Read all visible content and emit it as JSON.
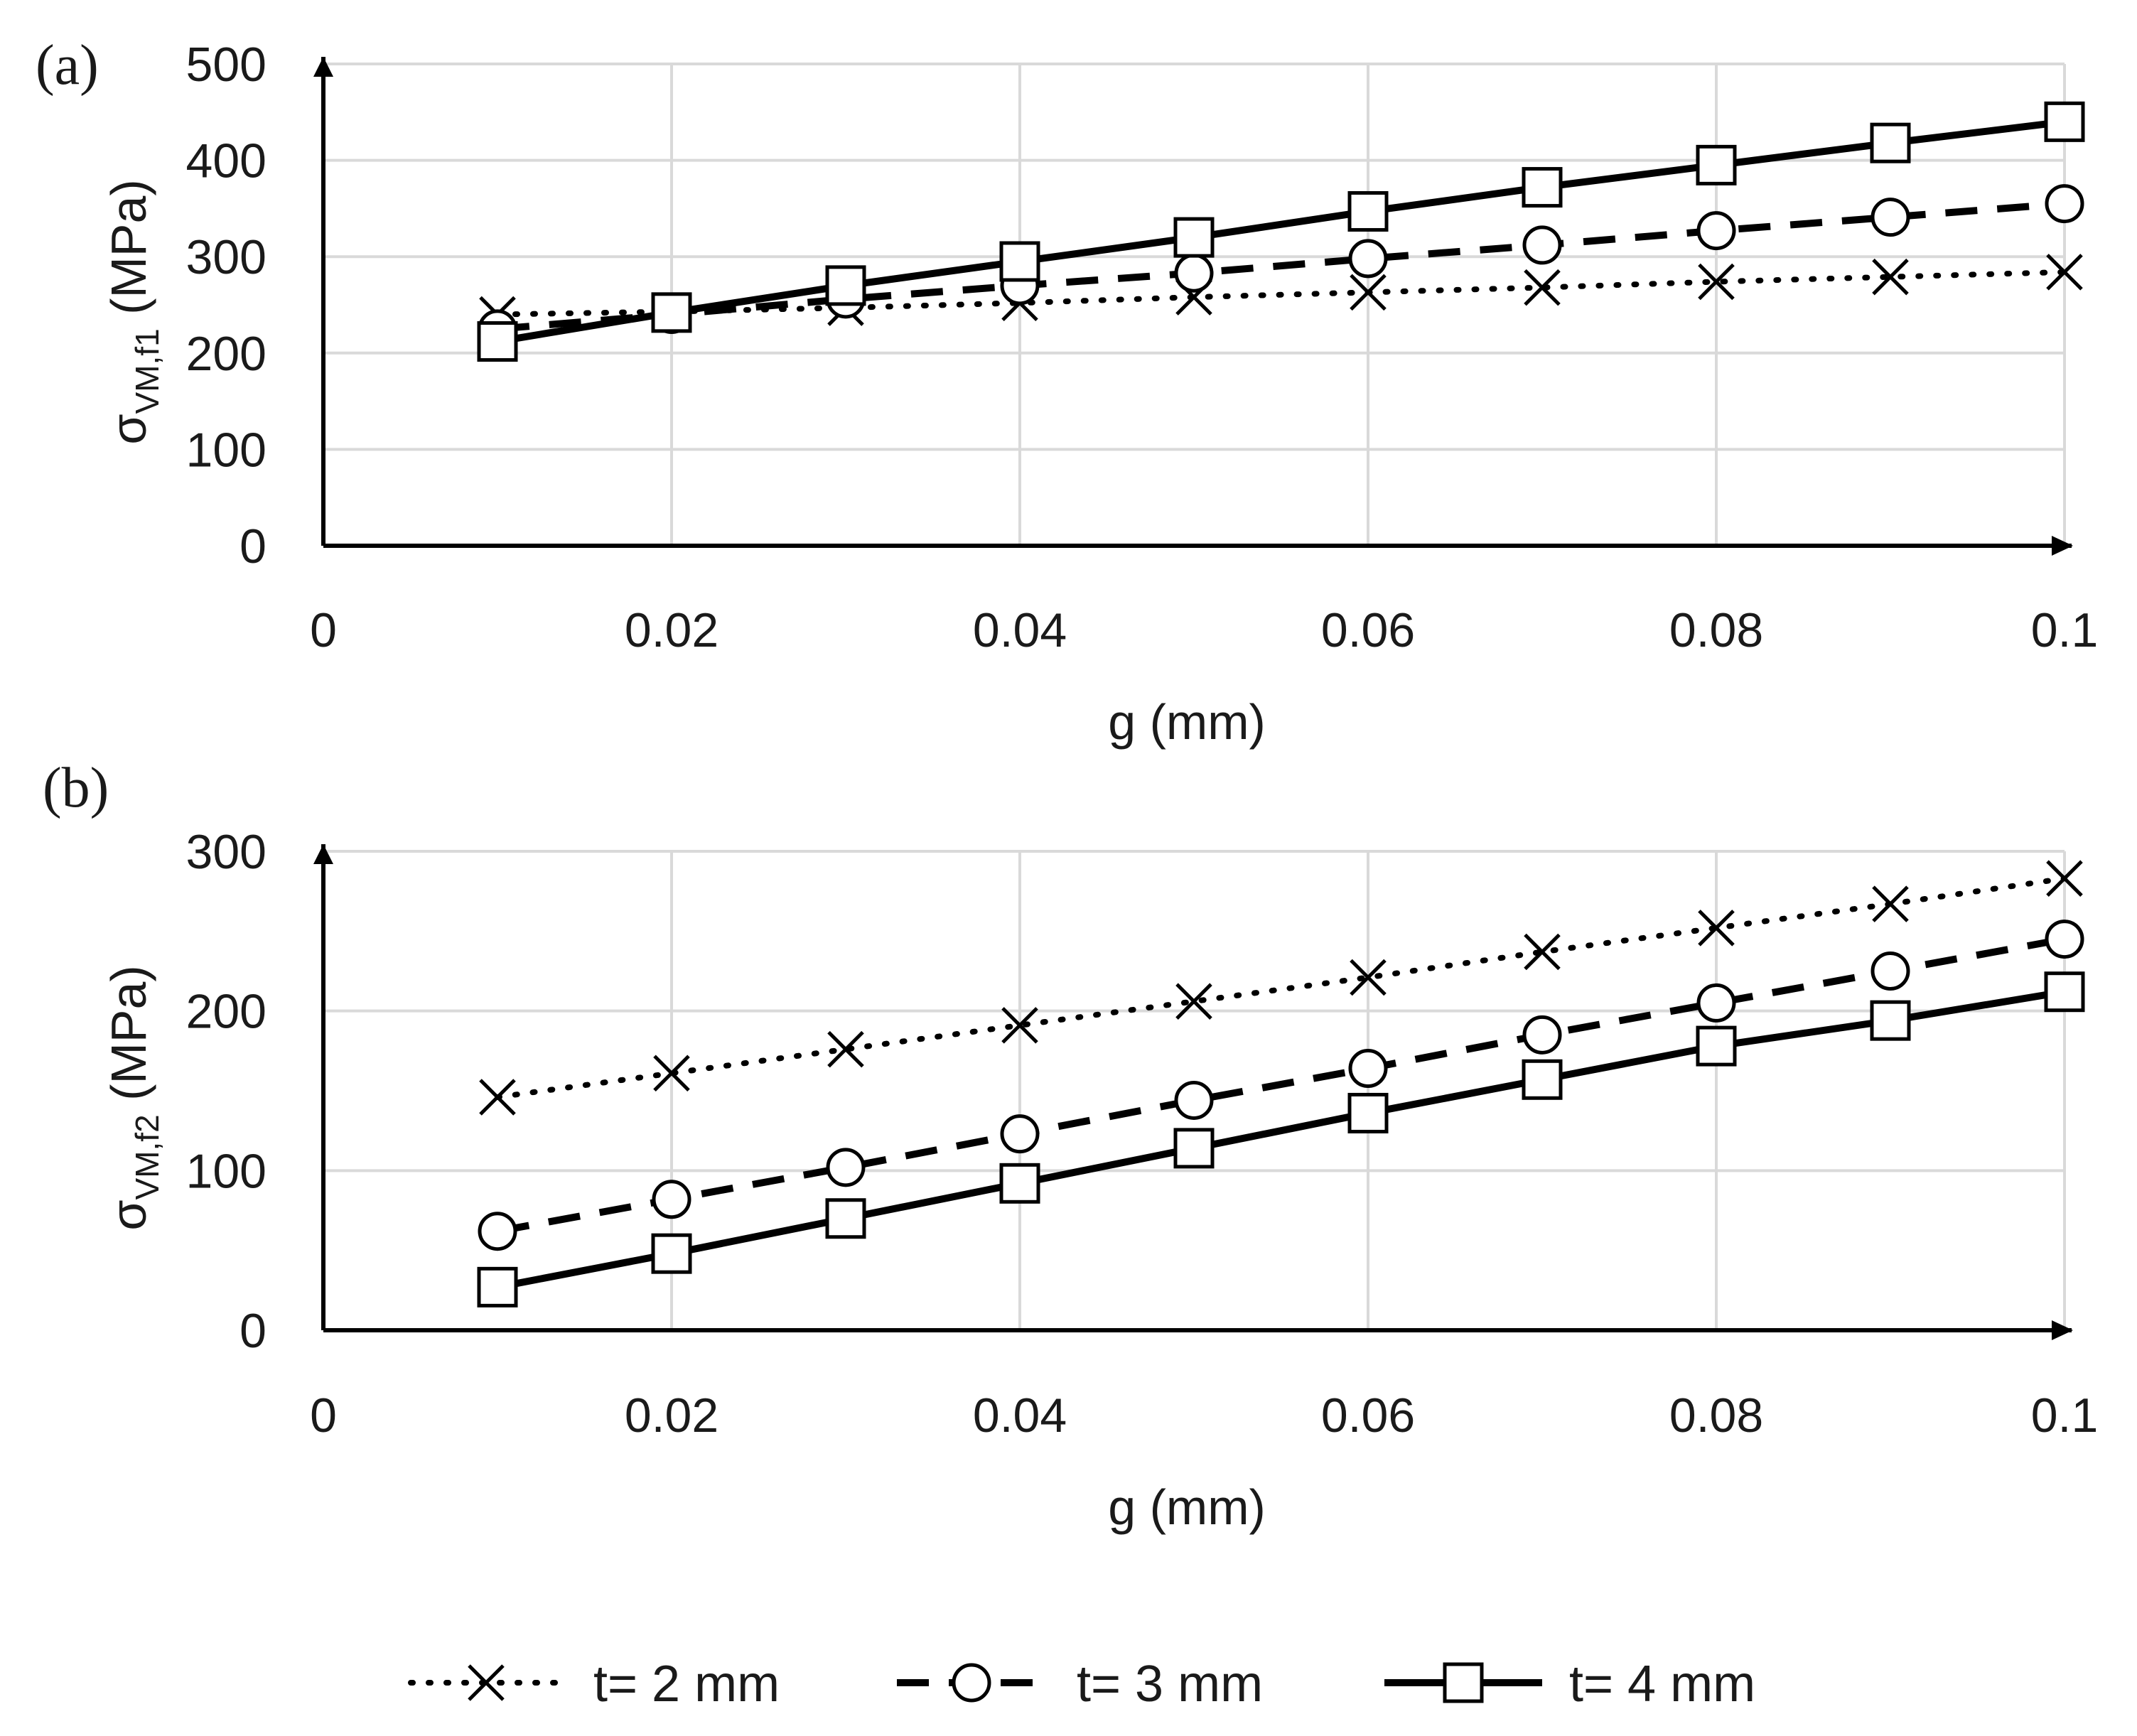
{
  "legend": [
    {
      "label": "t= 2 mm",
      "marker": "x",
      "dash": "dotted"
    },
    {
      "label": "t= 3 mm",
      "marker": "circle",
      "dash": "dashed"
    },
    {
      "label": "t= 4 mm",
      "marker": "square",
      "dash": "solid"
    }
  ],
  "chart_data": [
    {
      "type": "line",
      "panel_label": "(a)",
      "xlabel": "g (mm)",
      "ylabel": {
        "main": "σ",
        "sub": "VM,f1",
        "unit": " (MPa)"
      },
      "xlim": [
        0,
        0.1
      ],
      "ylim": [
        0,
        500
      ],
      "xticks": [
        0,
        0.02,
        0.04,
        0.06,
        0.08,
        0.1
      ],
      "xtick_labels": [
        "0",
        "0.02",
        "0.04",
        "0.06",
        "0.08",
        "0.1"
      ],
      "yticks": [
        0,
        100,
        200,
        300,
        400,
        500
      ],
      "ytick_labels": [
        "0",
        "100",
        "200",
        "300",
        "400",
        "500"
      ],
      "grid": true,
      "x": [
        0.01,
        0.02,
        0.03,
        0.04,
        0.05,
        0.06,
        0.07,
        0.08,
        0.09,
        0.1
      ],
      "series": [
        {
          "name": "t= 2 mm",
          "values": [
            240,
            243,
            247,
            252,
            258,
            263,
            268,
            274,
            279,
            284
          ]
        },
        {
          "name": "t= 3 mm",
          "values": [
            225,
            240,
            256,
            270,
            283,
            298,
            312,
            327,
            341,
            355
          ]
        },
        {
          "name": "t= 4 mm",
          "values": [
            212,
            242,
            270,
            295,
            320,
            347,
            372,
            395,
            418,
            440
          ]
        }
      ]
    },
    {
      "type": "line",
      "panel_label": "(b)",
      "xlabel": "g (mm)",
      "ylabel": {
        "main": "σ",
        "sub": "VM,f2",
        "unit": " (MPa)"
      },
      "xlim": [
        0,
        0.1
      ],
      "ylim": [
        0,
        300
      ],
      "xticks": [
        0,
        0.02,
        0.04,
        0.06,
        0.08,
        0.1
      ],
      "xtick_labels": [
        "0",
        "0.02",
        "0.04",
        "0.06",
        "0.08",
        "0.1"
      ],
      "yticks": [
        0,
        100,
        200,
        300
      ],
      "ytick_labels": [
        "0",
        "100",
        "200",
        "300"
      ],
      "grid": true,
      "x": [
        0.01,
        0.02,
        0.03,
        0.04,
        0.05,
        0.06,
        0.07,
        0.08,
        0.09,
        0.1
      ],
      "series": [
        {
          "name": "t= 2 mm",
          "values": [
            146,
            161,
            176,
            191,
            206,
            221,
            237,
            252,
            267,
            283
          ]
        },
        {
          "name": "t= 3 mm",
          "values": [
            62,
            82,
            102,
            123,
            144,
            164,
            185,
            205,
            225,
            245
          ]
        },
        {
          "name": "t= 4 mm",
          "values": [
            27,
            48,
            70,
            92,
            114,
            136,
            157,
            178,
            194,
            212
          ]
        }
      ]
    }
  ]
}
